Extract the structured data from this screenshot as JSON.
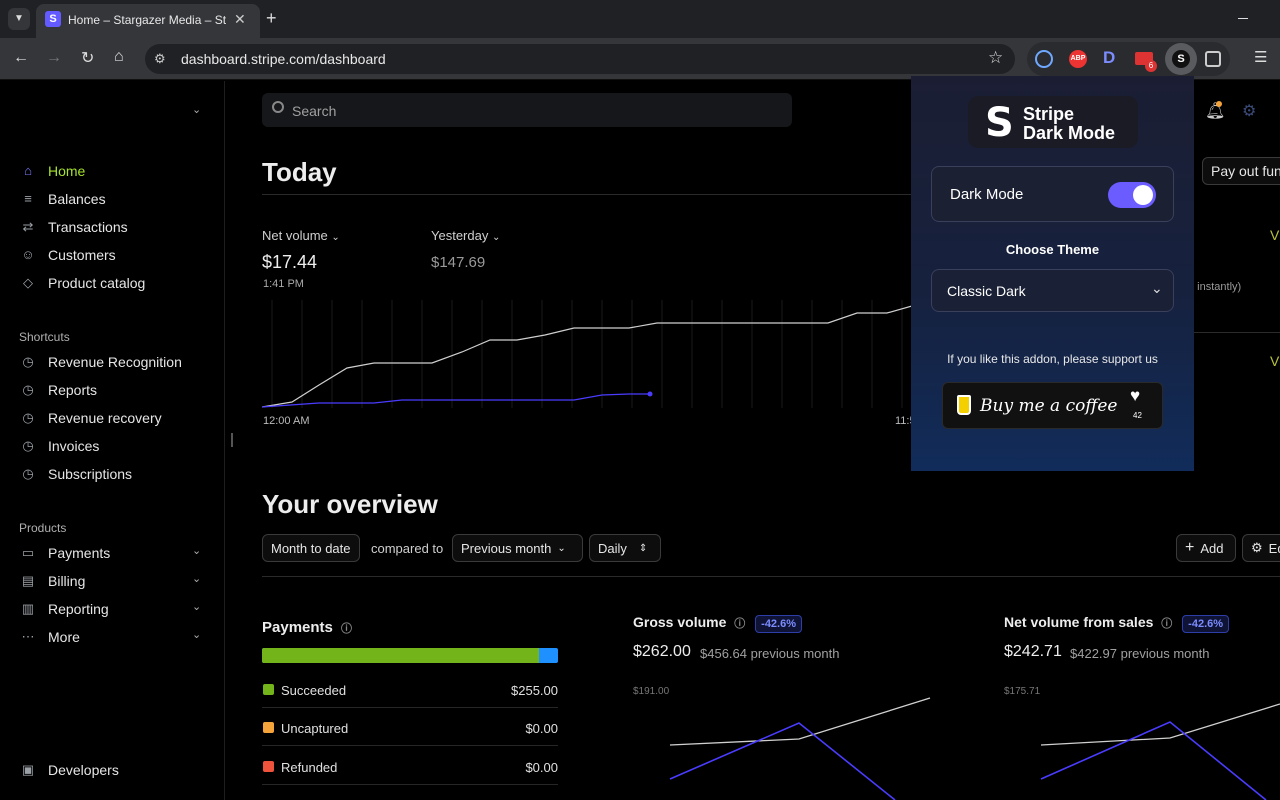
{
  "browser": {
    "tab_title": "Home – Stargazer Media – Strip",
    "url": "dashboard.stripe.com/dashboard",
    "ext_badge_count": "6",
    "ext_labels": {
      "abp": "ABP",
      "d": "D"
    }
  },
  "sidebar": {
    "items": [
      {
        "label": "Home",
        "icon": "home-icon"
      },
      {
        "label": "Balances",
        "icon": "balances-icon"
      },
      {
        "label": "Transactions",
        "icon": "transactions-icon"
      },
      {
        "label": "Customers",
        "icon": "customers-icon"
      },
      {
        "label": "Product catalog",
        "icon": "catalog-icon"
      }
    ],
    "shortcuts_label": "Shortcuts",
    "shortcuts": [
      {
        "label": "Revenue Recognition",
        "icon": "clock-icon"
      },
      {
        "label": "Reports",
        "icon": "clock-icon"
      },
      {
        "label": "Revenue recovery",
        "icon": "clock-icon"
      },
      {
        "label": "Invoices",
        "icon": "clock-icon"
      },
      {
        "label": "Subscriptions",
        "icon": "clock-icon"
      }
    ],
    "products_label": "Products",
    "products": [
      {
        "label": "Payments",
        "icon": "payments-icon"
      },
      {
        "label": "Billing",
        "icon": "billing-icon"
      },
      {
        "label": "Reporting",
        "icon": "reporting-icon"
      },
      {
        "label": "More",
        "icon": "more-icon"
      }
    ],
    "developers_label": "Developers"
  },
  "main": {
    "search_placeholder": "Search",
    "today_title": "Today",
    "payout_button": "Pay out fun",
    "net_volume_label": "Net volume",
    "net_volume_value": "$17.44",
    "net_volume_time": "1:41 PM",
    "yesterday_label": "Yesterday",
    "yesterday_value": "$147.69",
    "chart_start_label": "12:00 AM",
    "chart_end_label": "11:5",
    "right_partial_1": "V",
    "right_partial_2": "V",
    "right_partial_text": "e instantly)",
    "overview_title": "Your overview",
    "filter_date": "Month to date",
    "compared_to": "compared to",
    "filter_compare": "Previous month",
    "filter_interval": "Daily",
    "add_button": "Add",
    "edit_button": "Ed",
    "payments_title": "Payments",
    "payments_rows": [
      {
        "label": "Succeeded",
        "value": "$255.00",
        "color": "#73b41a"
      },
      {
        "label": "Uncaptured",
        "value": "$0.00",
        "color": "#f5a33b"
      },
      {
        "label": "Refunded",
        "value": "$0.00",
        "color": "#f0533c"
      }
    ],
    "payments_bar": {
      "succeeded_fraction": 0.935,
      "other_color": "#1e90ff",
      "succeeded_color": "#73b41a"
    },
    "gross_volume": {
      "title": "Gross volume",
      "badge": "-42.6%",
      "value": "$262.00",
      "previous": "$456.64 previous month",
      "axis_top": "$191.00"
    },
    "net_sales": {
      "title": "Net volume from sales",
      "badge": "-42.6%",
      "value": "$242.71",
      "previous": "$422.97 previous month",
      "axis_top": "$175.71"
    }
  },
  "popup": {
    "logo_line1": "Stripe",
    "logo_line2": "Dark Mode",
    "dark_mode_label": "Dark Mode",
    "dark_mode_on": true,
    "choose_theme": "Choose Theme",
    "theme_value": "Classic Dark",
    "support_text": "If you like this addon, please support us",
    "coffee_text": "Buy me a coffee",
    "coffee_count": "42"
  },
  "colors": {
    "accent": "#7b79ff",
    "active_text": "#a6e22e",
    "toggle": "#6a5cff"
  }
}
